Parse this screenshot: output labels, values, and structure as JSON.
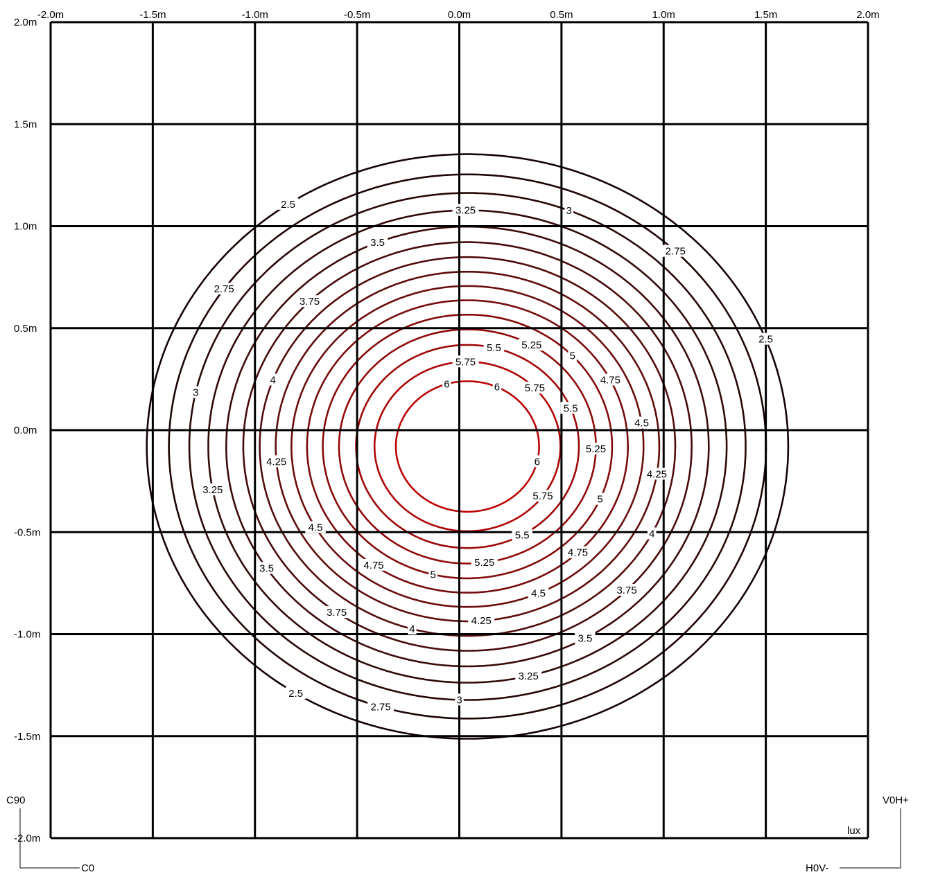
{
  "chart_data": {
    "type": "contour",
    "title": "",
    "unit": "lux",
    "x_ticks": [
      "-2.0m",
      "-1.5m",
      "-1.0m",
      "-0.5m",
      "0.0m",
      "0.5m",
      "1.0m",
      "1.5m",
      "2.0m"
    ],
    "y_ticks": [
      "2.0m",
      "1.5m",
      "1.0m",
      "0.5m",
      "0.0m",
      "-0.5m",
      "-1.0m",
      "-1.5m",
      "-2.0m"
    ],
    "xlim": [
      -2.0,
      2.0
    ],
    "ylim": [
      -2.0,
      2.0
    ],
    "grid": true,
    "levels": [
      {
        "value": 2.5,
        "label": "2.5",
        "color": "#160303"
      },
      {
        "value": 2.75,
        "label": "2.75",
        "color": "#1e0505"
      },
      {
        "value": 3.0,
        "label": "3",
        "color": "#280707"
      },
      {
        "value": 3.25,
        "label": "3.25",
        "color": "#320909"
      },
      {
        "value": 3.5,
        "label": "3.5",
        "color": "#3c0a0a"
      },
      {
        "value": 3.75,
        "label": "3.75",
        "color": "#470b0b"
      },
      {
        "value": 4.0,
        "label": "4",
        "color": "#520c0c"
      },
      {
        "value": 4.25,
        "label": "4.25",
        "color": "#5e0c0c"
      },
      {
        "value": 4.5,
        "label": "4.5",
        "color": "#6a0c0c"
      },
      {
        "value": 4.75,
        "label": "4.75",
        "color": "#770b0b"
      },
      {
        "value": 5.0,
        "label": "5",
        "color": "#840a0a"
      },
      {
        "value": 5.25,
        "label": "5.25",
        "color": "#910909"
      },
      {
        "value": 5.5,
        "label": "5.5",
        "color": "#9e0707"
      },
      {
        "value": 5.75,
        "label": "5.75",
        "color": "#ad0505"
      },
      {
        "value": 6.0,
        "label": "6",
        "color": "#bb0303"
      }
    ],
    "corner_labels": {
      "top_left": "C90",
      "bottom_left": "C0",
      "top_right": "V0H+",
      "bottom_right": "H0V-",
      "unit_label": "lux"
    }
  }
}
